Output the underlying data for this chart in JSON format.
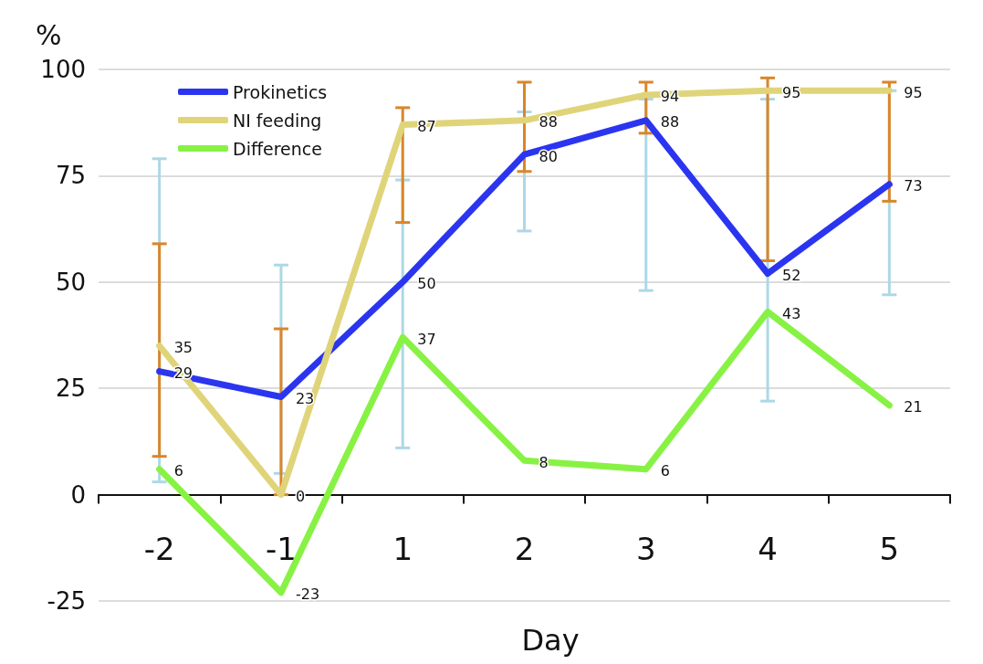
{
  "chart_data": {
    "type": "line",
    "ylabel": "%",
    "xlabel": "Day",
    "categories": [
      "-2",
      "-1",
      "1",
      "2",
      "3",
      "4",
      "5"
    ],
    "series": [
      {
        "name": "Prokinetics",
        "color": "#2b35f0",
        "values": [
          29,
          23,
          50,
          80,
          88,
          52,
          73
        ],
        "errors": [
          [
            3,
            79
          ],
          [
            5,
            54
          ],
          [
            11,
            74
          ],
          [
            62,
            90
          ],
          [
            48,
            93
          ],
          [
            22,
            93
          ],
          [
            47,
            95
          ]
        ]
      },
      {
        "name": "NI feeding",
        "color": "#e0d47a",
        "values": [
          35,
          0,
          87,
          88,
          94,
          95,
          95
        ],
        "errors": [
          [
            9,
            59
          ],
          [
            0,
            39
          ],
          [
            64,
            91
          ],
          [
            76,
            97
          ],
          [
            85,
            97
          ],
          [
            55,
            98
          ],
          [
            69,
            97
          ]
        ]
      },
      {
        "name": "Difference",
        "color": "#88f244",
        "values": [
          6,
          -23,
          37,
          8,
          6,
          43,
          21
        ]
      }
    ],
    "ylim": [
      -25,
      100
    ],
    "yticks": [
      -25,
      0,
      25,
      50,
      75,
      100
    ],
    "grid": "y",
    "legend": "top left",
    "marker": "none",
    "line_style": "solid",
    "data_labels": true
  }
}
